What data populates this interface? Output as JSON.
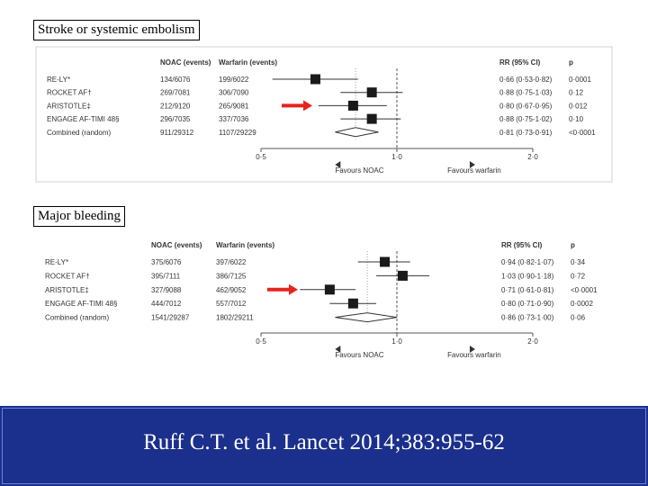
{
  "colors": {
    "footer_bg": "#1b2f8c",
    "arrow": "#e8231e",
    "marker": "#1a1a1a",
    "text": "#333333",
    "axis": "#555555"
  },
  "chart_data": [
    {
      "type": "forest",
      "title": "Stroke or systemic embolism",
      "column_headers": {
        "noac": "NOAC (events)",
        "warfarin": "Warfarin (events)",
        "rr": "RR (95% CI)",
        "p": "p"
      },
      "rows": [
        {
          "trial": "RE-LY*",
          "noac": "134/6076",
          "warfarin": "199/6022",
          "rr_text": "0·66 (0·53-0·82)",
          "p": "0·0001",
          "rr": 0.66,
          "lo": 0.53,
          "hi": 0.82,
          "diamond": false
        },
        {
          "trial": "ROCKET AF†",
          "noac": "269/7081",
          "warfarin": "306/7090",
          "rr_text": "0·88 (0·75-1·03)",
          "p": "0·12",
          "rr": 0.88,
          "lo": 0.75,
          "hi": 1.03,
          "diamond": false
        },
        {
          "trial": "ARISTOTLE‡",
          "noac": "212/9120",
          "warfarin": "265/9081",
          "rr_text": "0·80 (0·67-0·95)",
          "p": "0·012",
          "rr": 0.8,
          "lo": 0.67,
          "hi": 0.95,
          "diamond": false
        },
        {
          "trial": "ENGAGE AF-TIMI 48§",
          "noac": "296/7035",
          "warfarin": "337/7036",
          "rr_text": "0·88 (0·75-1·02)",
          "p": "0·10",
          "rr": 0.88,
          "lo": 0.75,
          "hi": 1.02,
          "diamond": false
        },
        {
          "trial": "Combined (random)",
          "noac": "911/29312",
          "warfarin": "1107/29229",
          "rr_text": "0·81 (0·73-0·91)",
          "p": "<0·0001",
          "rr": 0.81,
          "lo": 0.73,
          "hi": 0.91,
          "diamond": true
        }
      ],
      "highlighted_trial": "ARISTOTLE‡",
      "x_ticks": [
        {
          "value": 0.5,
          "label": "0·5"
        },
        {
          "value": 1.0,
          "label": "1·0"
        },
        {
          "value": 2.0,
          "label": "2·0"
        }
      ],
      "x_scale": "log",
      "xlim": [
        0.5,
        2.0
      ],
      "favours_left": "Favours NOAC",
      "favours_right": "Favours warfarin"
    },
    {
      "type": "forest",
      "title": "Major bleeding",
      "column_headers": {
        "noac": "NOAC (events)",
        "warfarin": "Warfarin (events)",
        "rr": "RR (95% CI)",
        "p": "p"
      },
      "rows": [
        {
          "trial": "RE-LY*",
          "noac": "375/6076",
          "warfarin": "397/6022",
          "rr_text": "0·94 (0·82-1·07)",
          "p": "0·34",
          "rr": 0.94,
          "lo": 0.82,
          "hi": 1.07,
          "diamond": false
        },
        {
          "trial": "ROCKET AF†",
          "noac": "395/7111",
          "warfarin": "386/7125",
          "rr_text": "1·03 (0·90-1·18)",
          "p": "0·72",
          "rr": 1.03,
          "lo": 0.9,
          "hi": 1.18,
          "diamond": false
        },
        {
          "trial": "ARISTOTLE‡",
          "noac": "327/9088",
          "warfarin": "462/9052",
          "rr_text": "0·71 (0·61-0·81)",
          "p": "<0·0001",
          "rr": 0.71,
          "lo": 0.61,
          "hi": 0.81,
          "diamond": false
        },
        {
          "trial": "ENGAGE AF-TIMI 48§",
          "noac": "444/7012",
          "warfarin": "557/7012",
          "rr_text": "0·80 (0·71-0·90)",
          "p": "0·0002",
          "rr": 0.8,
          "lo": 0.71,
          "hi": 0.9,
          "diamond": false
        },
        {
          "trial": "Combined (random)",
          "noac": "1541/29287",
          "warfarin": "1802/29211",
          "rr_text": "0·86 (0·73-1·00)",
          "p": "0·06",
          "rr": 0.86,
          "lo": 0.73,
          "hi": 1.0,
          "diamond": true
        }
      ],
      "highlighted_trial": "ARISTOTLE‡",
      "x_ticks": [
        {
          "value": 0.5,
          "label": "0·5"
        },
        {
          "value": 1.0,
          "label": "1·0"
        },
        {
          "value": 2.0,
          "label": "2·0"
        }
      ],
      "x_scale": "log",
      "xlim": [
        0.5,
        2.0
      ],
      "favours_left": "Favours NOAC",
      "favours_right": "Favours warfarin"
    }
  ],
  "citation": "Ruff C.T. et al. Lancet 2014;383:955-62"
}
